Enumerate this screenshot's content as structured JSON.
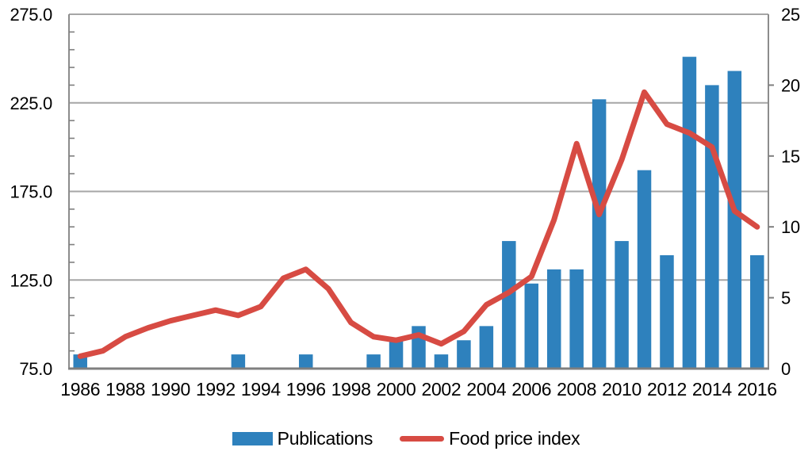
{
  "chart_data": {
    "type": "combo",
    "title": "",
    "categories": [
      1986,
      1987,
      1988,
      1989,
      1990,
      1991,
      1992,
      1993,
      1994,
      1995,
      1996,
      1997,
      1998,
      1999,
      2000,
      2001,
      2002,
      2003,
      2004,
      2005,
      2006,
      2007,
      2008,
      2009,
      2010,
      2011,
      2012,
      2013,
      2014,
      2015,
      2016
    ],
    "x_tick_labels": [
      "1986",
      "1988",
      "1990",
      "1992",
      "1994",
      "1996",
      "1998",
      "2000",
      "2002",
      "2004",
      "2006",
      "2008",
      "2010",
      "2012",
      "2014",
      "2016"
    ],
    "series": [
      {
        "name": "Publications",
        "type": "bar",
        "axis": "right",
        "color": "#2E81BD",
        "values": [
          1,
          0,
          0,
          0,
          0,
          0,
          0,
          1,
          0,
          0,
          1,
          0,
          0,
          1,
          2,
          3,
          1,
          2,
          3,
          9,
          6,
          7,
          7,
          19,
          9,
          14,
          8,
          22,
          20,
          21,
          8
        ]
      },
      {
        "name": "Food price index",
        "type": "line",
        "axis": "left",
        "color": "#D74B43",
        "values": [
          82,
          85,
          93,
          98,
          102,
          105,
          108,
          105,
          110,
          126,
          131,
          120,
          101,
          93,
          91,
          94,
          89,
          96,
          111,
          118,
          127,
          159,
          202,
          162,
          193,
          231,
          213,
          208,
          200,
          164,
          155
        ]
      }
    ],
    "left_axis": {
      "range": [
        75,
        275
      ],
      "tick_labels": [
        "275.0",
        "225.0",
        "175.0",
        "125.0",
        "75.0"
      ],
      "minor_tick_step": 10
    },
    "right_axis": {
      "range": [
        0,
        25
      ],
      "tick_labels": [
        "25",
        "20",
        "15",
        "10",
        "5",
        "0"
      ]
    },
    "grid": true,
    "legend_position": "bottom",
    "colors": {
      "gridline": "#A6A6A6",
      "plot_border": "#8C8C8C",
      "axis_line": "#7F7F7F",
      "text": "#000000",
      "background": "#FFFFFF"
    }
  }
}
